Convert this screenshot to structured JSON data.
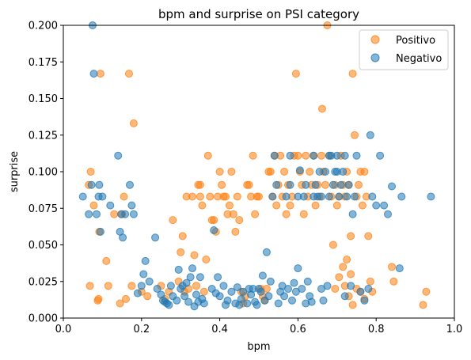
{
  "chart_data": {
    "type": "scatter",
    "title": "bpm and surprise on PSI category",
    "xlabel": "bpm",
    "ylabel": "surprise",
    "xlim": [
      0.0,
      1.0
    ],
    "ylim": [
      0.0,
      0.2
    ],
    "xticks": [
      "0.0",
      "0.2",
      "0.4",
      "0.6",
      "0.8",
      "1.0"
    ],
    "yticks": [
      "0.000",
      "0.025",
      "0.050",
      "0.075",
      "0.100",
      "0.125",
      "0.150",
      "0.175",
      "0.200"
    ],
    "grid": false,
    "legend_position": "top-right",
    "series": [
      {
        "name": "Positivo",
        "color": "#ff7f0e",
        "points": [
          [
            0.065,
            0.091
          ],
          [
            0.068,
            0.022
          ],
          [
            0.07,
            0.1
          ],
          [
            0.078,
            0.077
          ],
          [
            0.088,
            0.012
          ],
          [
            0.09,
            0.013
          ],
          [
            0.092,
            0.059
          ],
          [
            0.095,
            0.167
          ],
          [
            0.11,
            0.039
          ],
          [
            0.115,
            0.022
          ],
          [
            0.13,
            0.071
          ],
          [
            0.145,
            0.01
          ],
          [
            0.15,
            0.071
          ],
          [
            0.155,
            0.083
          ],
          [
            0.16,
            0.013
          ],
          [
            0.168,
            0.167
          ],
          [
            0.175,
            0.022
          ],
          [
            0.18,
            0.133
          ],
          [
            0.2,
            0.018
          ],
          [
            0.215,
            0.015
          ],
          [
            0.25,
            0.022
          ],
          [
            0.26,
            0.013
          ],
          [
            0.27,
            0.018
          ],
          [
            0.28,
            0.067
          ],
          [
            0.295,
            0.025
          ],
          [
            0.3,
            0.045
          ],
          [
            0.305,
            0.056
          ],
          [
            0.31,
            0.018
          ],
          [
            0.315,
            0.083
          ],
          [
            0.32,
            0.02
          ],
          [
            0.33,
            0.083
          ],
          [
            0.335,
            0.043
          ],
          [
            0.34,
            0.022
          ],
          [
            0.345,
            0.091
          ],
          [
            0.35,
            0.091
          ],
          [
            0.35,
            0.083
          ],
          [
            0.355,
            0.077
          ],
          [
            0.36,
            0.018
          ],
          [
            0.365,
            0.04
          ],
          [
            0.37,
            0.111
          ],
          [
            0.375,
            0.083
          ],
          [
            0.38,
            0.067
          ],
          [
            0.385,
            0.067
          ],
          [
            0.39,
            0.059
          ],
          [
            0.395,
            0.083
          ],
          [
            0.4,
            0.1
          ],
          [
            0.405,
            0.091
          ],
          [
            0.41,
            0.083
          ],
          [
            0.415,
            0.083
          ],
          [
            0.42,
            0.071
          ],
          [
            0.425,
            0.077
          ],
          [
            0.43,
            0.1
          ],
          [
            0.435,
            0.071
          ],
          [
            0.44,
            0.059
          ],
          [
            0.445,
            0.083
          ],
          [
            0.45,
            0.067
          ],
          [
            0.455,
            0.018
          ],
          [
            0.46,
            0.01
          ],
          [
            0.465,
            0.015
          ],
          [
            0.47,
            0.091
          ],
          [
            0.475,
            0.091
          ],
          [
            0.48,
            0.083
          ],
          [
            0.485,
            0.111
          ],
          [
            0.49,
            0.071
          ],
          [
            0.495,
            0.083
          ],
          [
            0.5,
            0.083
          ],
          [
            0.505,
            0.02
          ],
          [
            0.51,
            0.015
          ],
          [
            0.515,
            0.012
          ],
          [
            0.52,
            0.02
          ],
          [
            0.525,
            0.1
          ],
          [
            0.53,
            0.1
          ],
          [
            0.535,
            0.083
          ],
          [
            0.54,
            0.111
          ],
          [
            0.545,
            0.077
          ],
          [
            0.55,
            0.091
          ],
          [
            0.555,
            0.111
          ],
          [
            0.56,
            0.083
          ],
          [
            0.565,
            0.1
          ],
          [
            0.57,
            0.071
          ],
          [
            0.575,
            0.091
          ],
          [
            0.58,
            0.077
          ],
          [
            0.585,
            0.083
          ],
          [
            0.59,
            0.111
          ],
          [
            0.595,
            0.167
          ],
          [
            0.6,
            0.111
          ],
          [
            0.605,
            0.1
          ],
          [
            0.61,
            0.091
          ],
          [
            0.615,
            0.071
          ],
          [
            0.62,
            0.111
          ],
          [
            0.625,
            0.083
          ],
          [
            0.63,
            0.1
          ],
          [
            0.635,
            0.091
          ],
          [
            0.64,
            0.111
          ],
          [
            0.645,
            0.077
          ],
          [
            0.65,
            0.091
          ],
          [
            0.655,
            0.083
          ],
          [
            0.66,
            0.111
          ],
          [
            0.662,
            0.143
          ],
          [
            0.665,
            0.1
          ],
          [
            0.67,
            0.091
          ],
          [
            0.675,
            0.2
          ],
          [
            0.68,
            0.111
          ],
          [
            0.685,
            0.083
          ],
          [
            0.69,
            0.05
          ],
          [
            0.695,
            0.091
          ],
          [
            0.7,
            0.077
          ],
          [
            0.705,
            0.083
          ],
          [
            0.71,
            0.111
          ],
          [
            0.715,
            0.091
          ],
          [
            0.72,
            0.083
          ],
          [
            0.725,
            0.1
          ],
          [
            0.73,
            0.091
          ],
          [
            0.735,
            0.056
          ],
          [
            0.74,
            0.167
          ],
          [
            0.745,
            0.125
          ],
          [
            0.75,
            0.083
          ],
          [
            0.755,
            0.091
          ],
          [
            0.76,
            0.1
          ],
          [
            0.765,
            0.077
          ],
          [
            0.77,
            0.1
          ],
          [
            0.775,
            0.083
          ],
          [
            0.78,
            0.056
          ],
          [
            0.785,
            0.025
          ],
          [
            0.79,
            0.018
          ],
          [
            0.84,
            0.035
          ],
          [
            0.845,
            0.025
          ],
          [
            0.92,
            0.009
          ],
          [
            0.928,
            0.018
          ],
          [
            0.75,
            0.02
          ],
          [
            0.76,
            0.018
          ],
          [
            0.77,
            0.013
          ],
          [
            0.72,
            0.022
          ],
          [
            0.73,
            0.015
          ],
          [
            0.74,
            0.009
          ],
          [
            0.705,
            0.028
          ],
          [
            0.715,
            0.035
          ],
          [
            0.725,
            0.04
          ],
          [
            0.735,
            0.03
          ],
          [
            0.695,
            0.02
          ]
        ]
      },
      {
        "name": "Negativo",
        "color": "#1f77b4",
        "points": [
          [
            0.05,
            0.083
          ],
          [
            0.065,
            0.071
          ],
          [
            0.072,
            0.091
          ],
          [
            0.075,
            0.2
          ],
          [
            0.078,
            0.167
          ],
          [
            0.085,
            0.071
          ],
          [
            0.09,
            0.083
          ],
          [
            0.092,
            0.091
          ],
          [
            0.095,
            0.059
          ],
          [
            0.1,
            0.083
          ],
          [
            0.12,
            0.077
          ],
          [
            0.14,
            0.111
          ],
          [
            0.145,
            0.059
          ],
          [
            0.148,
            0.071
          ],
          [
            0.152,
            0.055
          ],
          [
            0.158,
            0.071
          ],
          [
            0.17,
            0.091
          ],
          [
            0.175,
            0.077
          ],
          [
            0.18,
            0.071
          ],
          [
            0.19,
            0.017
          ],
          [
            0.2,
            0.022
          ],
          [
            0.205,
            0.03
          ],
          [
            0.21,
            0.039
          ],
          [
            0.22,
            0.025
          ],
          [
            0.235,
            0.055
          ],
          [
            0.24,
            0.02
          ],
          [
            0.25,
            0.016
          ],
          [
            0.255,
            0.012
          ],
          [
            0.26,
            0.011
          ],
          [
            0.265,
            0.01
          ],
          [
            0.27,
            0.009
          ],
          [
            0.275,
            0.022
          ],
          [
            0.28,
            0.015
          ],
          [
            0.29,
            0.012
          ],
          [
            0.295,
            0.033
          ],
          [
            0.3,
            0.02
          ],
          [
            0.305,
            0.022
          ],
          [
            0.31,
            0.015
          ],
          [
            0.315,
            0.024
          ],
          [
            0.32,
            0.011
          ],
          [
            0.325,
            0.028
          ],
          [
            0.33,
            0.034
          ],
          [
            0.335,
            0.008
          ],
          [
            0.34,
            0.016
          ],
          [
            0.345,
            0.011
          ],
          [
            0.35,
            0.028
          ],
          [
            0.355,
            0.013
          ],
          [
            0.36,
            0.01
          ],
          [
            0.38,
            0.02
          ],
          [
            0.385,
            0.06
          ],
          [
            0.39,
            0.017
          ],
          [
            0.395,
            0.028
          ],
          [
            0.4,
            0.015
          ],
          [
            0.41,
            0.022
          ],
          [
            0.415,
            0.009
          ],
          [
            0.42,
            0.012
          ],
          [
            0.43,
            0.018
          ],
          [
            0.44,
            0.01
          ],
          [
            0.445,
            0.021
          ],
          [
            0.45,
            0.009
          ],
          [
            0.455,
            0.013
          ],
          [
            0.46,
            0.018
          ],
          [
            0.47,
            0.01
          ],
          [
            0.475,
            0.02
          ],
          [
            0.48,
            0.016
          ],
          [
            0.485,
            0.02
          ],
          [
            0.49,
            0.011
          ],
          [
            0.495,
            0.009
          ],
          [
            0.5,
            0.02
          ],
          [
            0.505,
            0.018
          ],
          [
            0.51,
            0.029
          ],
          [
            0.515,
            0.012
          ],
          [
            0.52,
            0.045
          ],
          [
            0.525,
            0.015
          ],
          [
            0.53,
            0.025
          ],
          [
            0.535,
            0.083
          ],
          [
            0.54,
            0.111
          ],
          [
            0.545,
            0.091
          ],
          [
            0.55,
            0.01
          ],
          [
            0.555,
            0.018
          ],
          [
            0.56,
            0.022
          ],
          [
            0.565,
            0.015
          ],
          [
            0.57,
            0.083
          ],
          [
            0.575,
            0.02
          ],
          [
            0.58,
            0.091
          ],
          [
            0.585,
            0.012
          ],
          [
            0.59,
            0.024
          ],
          [
            0.595,
            0.018
          ],
          [
            0.6,
            0.034
          ],
          [
            0.605,
            0.101
          ],
          [
            0.61,
            0.02
          ],
          [
            0.615,
            0.083
          ],
          [
            0.62,
            0.01
          ],
          [
            0.625,
            0.025
          ],
          [
            0.63,
            0.015
          ],
          [
            0.635,
            0.011
          ],
          [
            0.64,
            0.111
          ],
          [
            0.645,
            0.091
          ],
          [
            0.65,
            0.083
          ],
          [
            0.655,
            0.1
          ],
          [
            0.66,
            0.02
          ],
          [
            0.665,
            0.012
          ],
          [
            0.67,
            0.1
          ],
          [
            0.675,
            0.022
          ],
          [
            0.68,
            0.083
          ],
          [
            0.685,
            0.111
          ],
          [
            0.69,
            0.091
          ],
          [
            0.695,
            0.1
          ],
          [
            0.7,
            0.111
          ],
          [
            0.705,
            0.083
          ],
          [
            0.71,
            0.091
          ],
          [
            0.715,
            0.1
          ],
          [
            0.72,
            0.015
          ],
          [
            0.725,
            0.083
          ],
          [
            0.73,
            0.091
          ],
          [
            0.735,
            0.022
          ],
          [
            0.74,
            0.071
          ],
          [
            0.745,
            0.083
          ],
          [
            0.75,
            0.111
          ],
          [
            0.76,
            0.018
          ],
          [
            0.77,
            0.012
          ],
          [
            0.78,
            0.02
          ],
          [
            0.785,
            0.125
          ],
          [
            0.79,
            0.083
          ],
          [
            0.8,
            0.077
          ],
          [
            0.81,
            0.111
          ],
          [
            0.82,
            0.077
          ],
          [
            0.83,
            0.071
          ],
          [
            0.84,
            0.09
          ],
          [
            0.86,
            0.034
          ],
          [
            0.865,
            0.083
          ],
          [
            0.94,
            0.083
          ],
          [
            0.6,
            0.083
          ],
          [
            0.62,
            0.091
          ],
          [
            0.64,
            0.083
          ],
          [
            0.68,
            0.111
          ],
          [
            0.7,
            0.1
          ],
          [
            0.72,
            0.111
          ],
          [
            0.66,
            0.083
          ],
          [
            0.58,
            0.111
          ]
        ]
      }
    ]
  }
}
